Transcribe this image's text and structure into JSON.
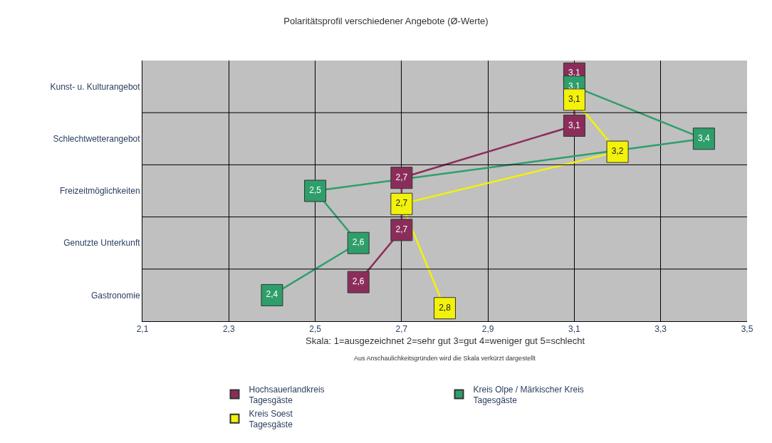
{
  "chart_data": {
    "type": "line",
    "orientation": "horizontal",
    "title": "Polaritätsprofil verschiedener Angebote (Ø-Werte)",
    "categories": [
      "Kunst- u. Kulturangebot",
      "Schlechtwetterangebot",
      "Freizeitmöglichkeiten",
      "Genutzte Unterkunft",
      "Gastronomie"
    ],
    "series": [
      {
        "name": "Hochsauerlandkreis\nTagesgäste",
        "color": "#8b2d5a",
        "values": [
          3.1,
          3.1,
          2.7,
          2.7,
          2.6
        ],
        "value_labels": [
          "3,1",
          "3,1",
          "2,7",
          "2,7",
          "2,6"
        ]
      },
      {
        "name": "Kreis Olpe / Märkischer Kreis\nTagesgäste",
        "color": "#2e9e6b",
        "values": [
          3.1,
          3.4,
          2.5,
          2.6,
          2.4
        ],
        "value_labels": [
          "3,1",
          "3,4",
          "2,5",
          "2,6",
          "2,4"
        ]
      },
      {
        "name": "Kreis Soest\nTagesgäste",
        "color": "#f2f20a",
        "values": [
          3.1,
          3.2,
          2.7,
          null,
          2.8
        ],
        "value_labels": [
          "3,1",
          "3,2",
          "2,7",
          null,
          "2,8"
        ]
      }
    ],
    "xlim": [
      2.1,
      3.5
    ],
    "xticks": [
      {
        "value": 2.1,
        "label": "2,1"
      },
      {
        "value": 2.3,
        "label": "2,3"
      },
      {
        "value": 2.5,
        "label": "2,5"
      },
      {
        "value": 2.7,
        "label": "2,7"
      },
      {
        "value": 2.9,
        "label": "2,9"
      },
      {
        "value": 3.1,
        "label": "3,1"
      },
      {
        "value": 3.3,
        "label": "3,3"
      },
      {
        "value": 3.5,
        "label": "3,5"
      }
    ],
    "grid": true,
    "marker": "square",
    "legend": "bottom",
    "annotations": [
      "Skala: 1=ausgezeichnet 2=sehr gut 3=gut 4=weniger gut 5=schlecht",
      "Aus Anschaulichkeitsgründen wird die Skala verkürzt dargestellt"
    ]
  }
}
